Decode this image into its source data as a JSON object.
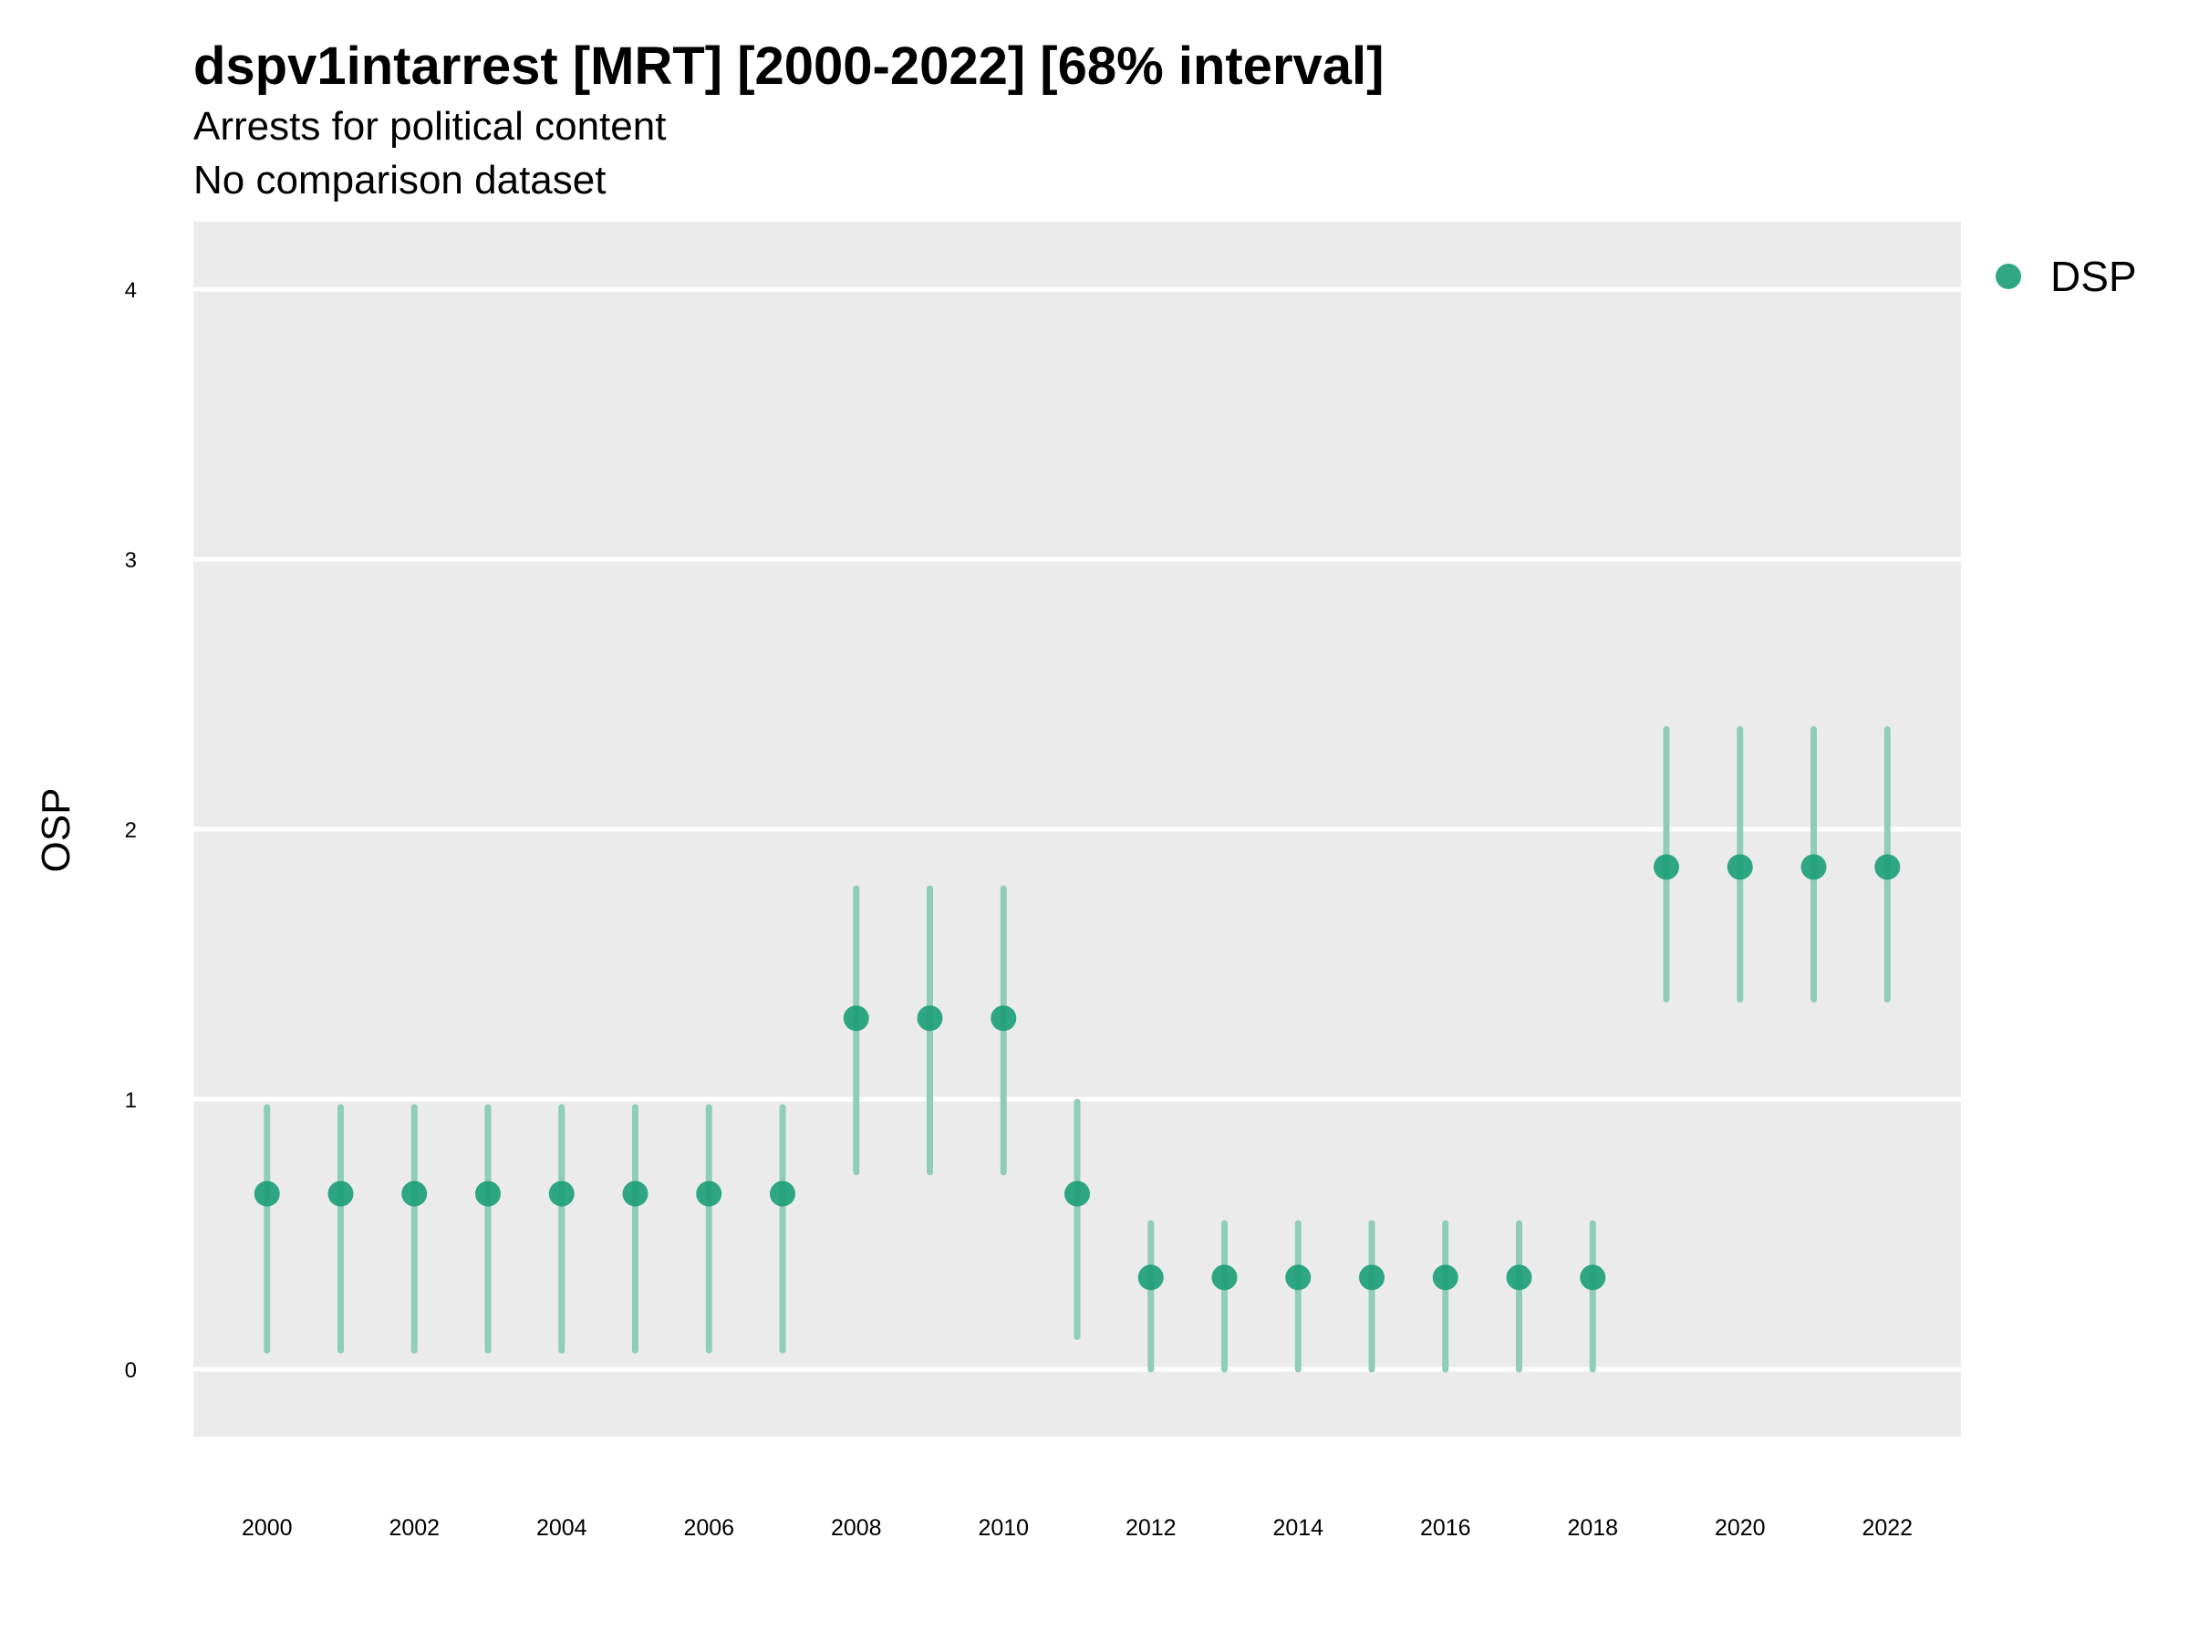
{
  "chart_data": {
    "type": "scatter",
    "title": "dspv1intarrest [MRT] [2000-2022] [68% interval]",
    "subtitle": "Arrests for political content",
    "caption_line": "No comparison dataset",
    "xlabel": "",
    "ylabel": "OSP",
    "ylim": [
      -0.25,
      4.25
    ],
    "xlim": [
      1999,
      2023
    ],
    "yticks": [
      0,
      1,
      2,
      3,
      4
    ],
    "xticks": [
      2000,
      2002,
      2004,
      2006,
      2008,
      2010,
      2012,
      2014,
      2016,
      2018,
      2020,
      2022
    ],
    "grid": true,
    "legend": {
      "position": "right-top",
      "entries": [
        "DSP"
      ]
    },
    "colors": {
      "point": "#1b9e77",
      "interval": "#8fcdb9",
      "panel": "#ebebeb",
      "grid": "#ffffff"
    },
    "series": [
      {
        "name": "DSP",
        "x": [
          2000,
          2001,
          2002,
          2003,
          2004,
          2005,
          2006,
          2007,
          2008,
          2009,
          2010,
          2011,
          2012,
          2013,
          2014,
          2015,
          2016,
          2017,
          2018,
          2019,
          2020,
          2021,
          2022
        ],
        "y": [
          0.65,
          0.65,
          0.65,
          0.65,
          0.65,
          0.65,
          0.65,
          0.65,
          1.3,
          1.3,
          1.3,
          0.65,
          0.34,
          0.34,
          0.34,
          0.34,
          0.34,
          0.34,
          0.34,
          1.86,
          1.86,
          1.86,
          1.86
        ],
        "lower": [
          0.07,
          0.07,
          0.07,
          0.07,
          0.07,
          0.07,
          0.07,
          0.07,
          0.73,
          0.73,
          0.73,
          0.12,
          0.0,
          0.0,
          0.0,
          0.0,
          0.0,
          0.0,
          0.0,
          1.37,
          1.37,
          1.37,
          1.37
        ],
        "upper": [
          0.97,
          0.97,
          0.97,
          0.97,
          0.97,
          0.97,
          0.97,
          0.97,
          1.78,
          1.78,
          1.78,
          0.99,
          0.54,
          0.54,
          0.54,
          0.54,
          0.54,
          0.54,
          0.54,
          2.37,
          2.37,
          2.37,
          2.37
        ]
      }
    ]
  }
}
